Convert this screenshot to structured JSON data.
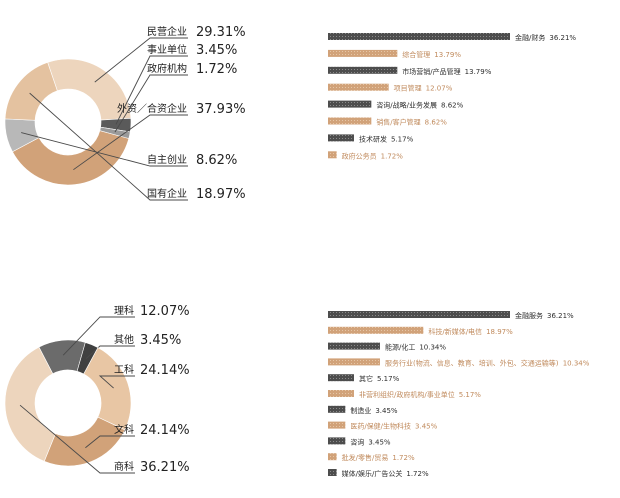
{
  "colors": {
    "dark": "#4d4d4d",
    "tan": "#d1a279",
    "light_tan": "#edd5bd",
    "gray": "#b3b3b3",
    "line": "#4a4a4a"
  },
  "chart_data": [
    {
      "type": "pie",
      "style": "donut",
      "slices": [
        {
          "label": "民营企业",
          "value": 29.31,
          "value_text": "29.31%",
          "color": "#edd5bd"
        },
        {
          "label": "事业单位",
          "value": 3.45,
          "value_text": "3.45%",
          "color": "#5a5a5a"
        },
        {
          "label": "政府机构",
          "value": 1.72,
          "value_text": "1.72%",
          "color": "#9a9a9a"
        },
        {
          "label": "外资／合资企业",
          "value": 37.93,
          "value_text": "37.93%",
          "color": "#d1a279"
        },
        {
          "label": "自主创业",
          "value": 8.62,
          "value_text": "8.62%",
          "color": "#b8b8b8"
        },
        {
          "label": "国有企业",
          "value": 18.97,
          "value_text": "18.97%",
          "color": "#e4c2a0"
        }
      ]
    },
    {
      "type": "bar",
      "orientation": "horizontal",
      "categories": [
        "金融/财务",
        "综合管理",
        "市场营销/产品管理",
        "项目管理",
        "咨询/战略/业务发展",
        "销售/客户管理",
        "技术研发",
        "政府公务员"
      ],
      "values": [
        36.21,
        13.79,
        13.79,
        12.07,
        8.62,
        8.62,
        5.17,
        1.72
      ],
      "value_texts": [
        "36.21%",
        "13.79%",
        "13.79%",
        "12.07%",
        "8.62%",
        "8.62%",
        "5.17%",
        "1.72%"
      ],
      "bar_colors": [
        "#4d4d4d",
        "#d1a279",
        "#4d4d4d",
        "#d1a279",
        "#4d4d4d",
        "#d1a279",
        "#4d4d4d",
        "#d1a279"
      ]
    },
    {
      "type": "pie",
      "style": "donut",
      "slices": [
        {
          "label": "理科",
          "value": 12.07,
          "value_text": "12.07%",
          "color": "#6b6b6b"
        },
        {
          "label": "其他",
          "value": 3.45,
          "value_text": "3.45%",
          "color": "#404040"
        },
        {
          "label": "工科",
          "value": 24.14,
          "value_text": "24.14%",
          "color": "#e8c6a4"
        },
        {
          "label": "文科",
          "value": 24.14,
          "value_text": "24.14%",
          "color": "#d1a279"
        },
        {
          "label": "商科",
          "value": 36.21,
          "value_text": "36.21%",
          "color": "#edd5bd"
        }
      ]
    },
    {
      "type": "bar",
      "orientation": "horizontal",
      "categories": [
        "金融服务",
        "科技/新媒体/电信",
        "能源/化工",
        "服务行业(物流、信息、教育、培训、外包、交通运输等)",
        "其它",
        "非营利组织/政府机构/事业单位",
        "制造业",
        "医药/保健/生物科技",
        "咨询",
        "批发/零售/贸易",
        "媒体/娱乐/广告公关"
      ],
      "values": [
        36.21,
        18.97,
        10.34,
        10.34,
        5.17,
        5.17,
        3.45,
        3.45,
        3.45,
        1.72,
        1.72
      ],
      "value_texts": [
        "36.21%",
        "18.97%",
        "10.34%",
        "10.34%",
        "5.17%",
        "5.17%",
        "3.45%",
        "3.45%",
        "3.45%",
        "1.72%",
        "1.72%"
      ],
      "bar_colors": [
        "#4d4d4d",
        "#d1a279",
        "#4d4d4d",
        "#d1a279",
        "#4d4d4d",
        "#d1a279",
        "#4d4d4d",
        "#d1a279",
        "#4d4d4d",
        "#d1a279",
        "#4d4d4d"
      ]
    }
  ]
}
